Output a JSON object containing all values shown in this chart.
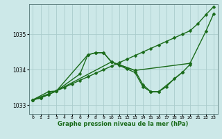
{
  "xlabel": "Graphe pression niveau de la mer (hPa)",
  "bg_color": "#cce8e8",
  "grid_color": "#aacccc",
  "line_color": "#1a6b1a",
  "markersize": 2.5,
  "linewidth": 1.0,
  "xlim": [
    -0.5,
    23.5
  ],
  "ylim": [
    1032.75,
    1035.85
  ],
  "xticks": [
    0,
    1,
    2,
    3,
    4,
    5,
    6,
    7,
    8,
    9,
    10,
    11,
    12,
    13,
    14,
    15,
    16,
    17,
    18,
    19,
    20,
    21,
    22,
    23
  ],
  "yticks": [
    1033,
    1034,
    1035
  ],
  "s1_x": [
    0,
    1,
    2,
    3,
    4,
    5,
    6,
    7,
    8,
    9,
    10,
    11,
    12,
    13,
    14,
    15,
    16,
    17,
    18,
    19,
    20,
    21,
    22,
    23
  ],
  "s1_y": [
    1033.15,
    1033.2,
    1033.3,
    1033.4,
    1033.5,
    1033.6,
    1033.7,
    1033.8,
    1033.9,
    1034.0,
    1034.1,
    1034.2,
    1034.3,
    1034.4,
    1034.5,
    1034.6,
    1034.7,
    1034.8,
    1034.9,
    1035.0,
    1035.1,
    1035.3,
    1035.55,
    1035.78
  ],
  "s2_x": [
    0,
    3,
    7,
    8,
    9,
    10,
    13,
    20,
    22,
    23
  ],
  "s2_y": [
    1033.15,
    1033.4,
    1034.42,
    1034.48,
    1034.48,
    1034.22,
    1033.98,
    1034.18,
    1035.08,
    1035.58
  ],
  "s3_x": [
    0,
    2,
    3,
    6,
    7,
    8,
    9,
    10,
    11,
    12,
    13,
    14,
    15,
    16,
    17,
    18,
    19,
    20
  ],
  "s3_y": [
    1033.15,
    1033.38,
    1033.4,
    1033.88,
    1034.42,
    1034.48,
    1034.48,
    1034.22,
    1034.12,
    1034.02,
    1033.92,
    1033.52,
    1033.38,
    1033.38,
    1033.52,
    1033.75,
    1033.92,
    1034.15
  ],
  "s4_x": [
    0,
    1,
    2,
    3,
    10,
    13,
    14,
    15,
    16,
    19
  ],
  "s4_y": [
    1033.15,
    1033.2,
    1033.3,
    1033.4,
    1034.22,
    1033.98,
    1033.58,
    1033.38,
    1033.38,
    1033.92
  ]
}
